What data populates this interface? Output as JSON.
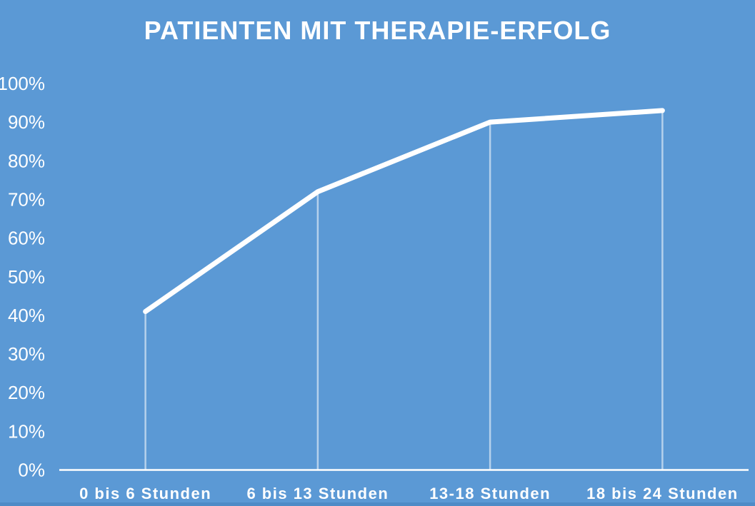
{
  "chart_data": {
    "type": "line",
    "title": "PATIENTEN MIT THERAPIE-ERFOLG",
    "categories": [
      "0 bis 6 Stunden",
      "6 bis 13 Stunden",
      "13-18 Stunden",
      "18 bis 24 Stunden"
    ],
    "values": [
      41,
      72,
      90,
      93
    ],
    "unit": "%",
    "xlabel": "",
    "ylabel": "",
    "ylim": [
      0,
      100
    ],
    "ytick_step": 10,
    "ytick_labels": [
      "0%",
      "10%",
      "20%",
      "30%",
      "40%",
      "50%",
      "60%",
      "70%",
      "80%",
      "90%",
      "100%"
    ],
    "grid": false,
    "legend": "none",
    "drop_lines": true,
    "colors": {
      "background": "#5b99d5",
      "line": "#ffffff",
      "drop_line": "rgba(255,255,255,0.55)",
      "axis_line": "#ffffff",
      "text": "#ffffff",
      "bottom_border": "#4e8bc7"
    }
  }
}
